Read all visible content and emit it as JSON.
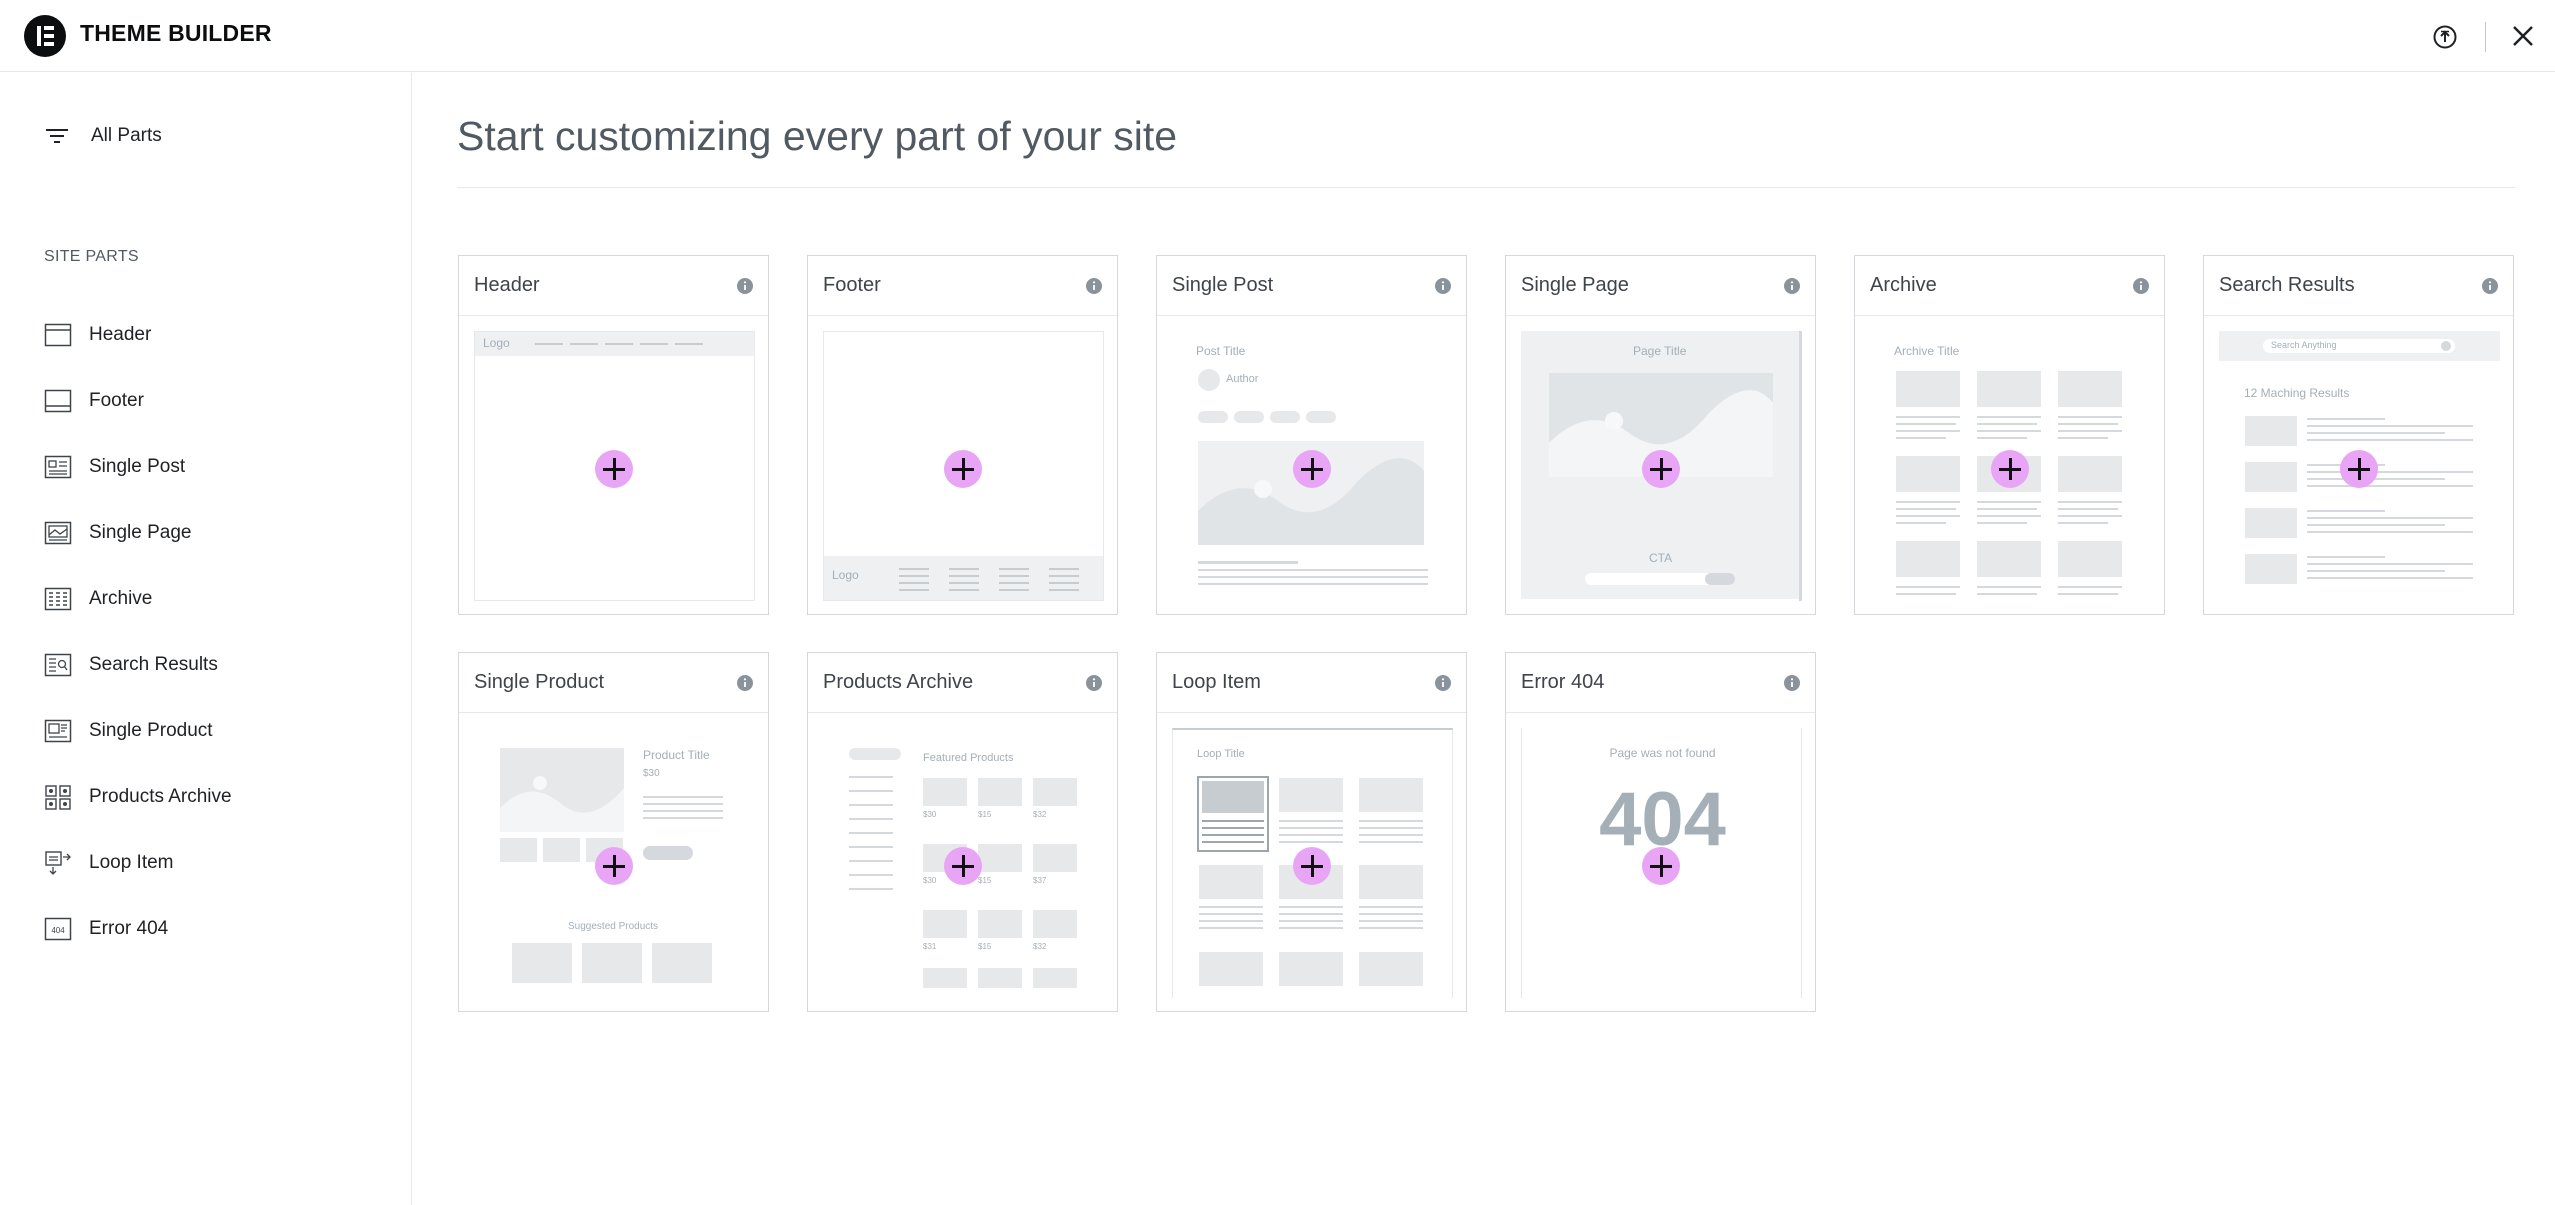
{
  "header": {
    "app_title": "THEME BUILDER",
    "logo_icon": "elementor-logo-icon",
    "help_icon": "upload-circle-icon",
    "close_icon": "close-icon"
  },
  "sidebar": {
    "all_parts_label": "All Parts",
    "section_title": "SITE PARTS",
    "items": [
      {
        "label": "Header",
        "icon": "header-icon"
      },
      {
        "label": "Footer",
        "icon": "footer-icon"
      },
      {
        "label": "Single Post",
        "icon": "single-post-icon"
      },
      {
        "label": "Single Page",
        "icon": "single-page-icon"
      },
      {
        "label": "Archive",
        "icon": "archive-icon"
      },
      {
        "label": "Search Results",
        "icon": "search-results-icon"
      },
      {
        "label": "Single Product",
        "icon": "single-product-icon"
      },
      {
        "label": "Products Archive",
        "icon": "products-archive-icon"
      },
      {
        "label": "Loop Item",
        "icon": "loop-item-icon"
      },
      {
        "label": "Error 404",
        "icon": "error-404-icon"
      }
    ]
  },
  "main": {
    "title": "Start customizing every part of your site",
    "cards": [
      {
        "title": "Header",
        "preview": {
          "logo": "Logo"
        }
      },
      {
        "title": "Footer",
        "preview": {
          "logo": "Logo"
        }
      },
      {
        "title": "Single Post",
        "preview": {
          "post_title": "Post Title",
          "author": "Author"
        }
      },
      {
        "title": "Single Page",
        "preview": {
          "page_title": "Page Title",
          "cta": "CTA"
        }
      },
      {
        "title": "Archive",
        "preview": {
          "archive_title": "Archive Title"
        }
      },
      {
        "title": "Search Results",
        "preview": {
          "search_placeholder": "Search Anything",
          "results_text": "12 Maching Results"
        }
      },
      {
        "title": "Single Product",
        "preview": {
          "product_title": "Product Title",
          "price": "$30",
          "suggested": "Suggested Products"
        }
      },
      {
        "title": "Products Archive",
        "preview": {
          "featured": "Featured Products",
          "prices": [
            "$30",
            "$15",
            "$32",
            "$30",
            "$15",
            "$37",
            "$31",
            "$15",
            "$32"
          ]
        }
      },
      {
        "title": "Loop Item",
        "preview": {
          "loop_title": "Loop Title"
        }
      },
      {
        "title": "Error 404",
        "preview": {
          "not_found": "Page was not found",
          "code": "404"
        }
      }
    ]
  },
  "colors": {
    "accent_plus": "#e8a5f5",
    "wireframe": "#e6e8ea",
    "text_muted": "#515962"
  }
}
